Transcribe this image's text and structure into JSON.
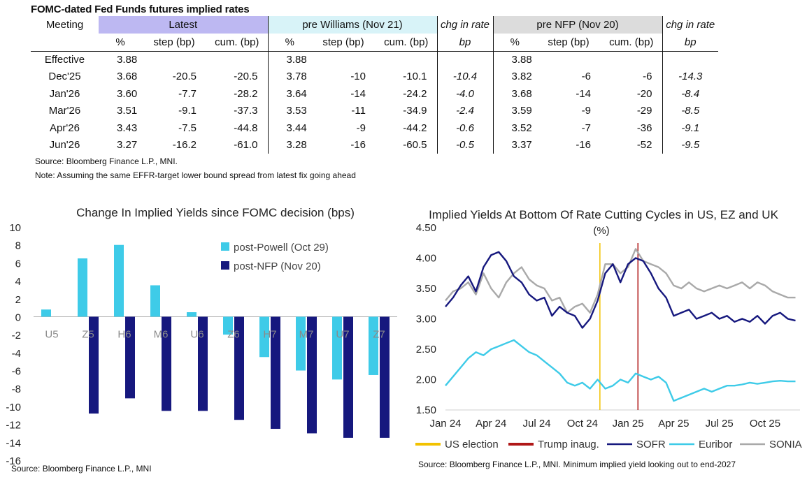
{
  "table": {
    "title": "FOMC-dated Fed Funds futures implied rates",
    "meeting_header": "Meeting",
    "groups": [
      {
        "label": "Latest",
        "color": "#bdb8f2"
      },
      {
        "label": "pre Williams (Nov 21)",
        "color": "#d8f3f8"
      },
      {
        "label": "chg in rate",
        "color": "#ffffff"
      },
      {
        "label": "pre NFP (Nov 20)",
        "color": "#dcdcdc"
      },
      {
        "label": "chg in rate",
        "color": "#ffffff"
      }
    ],
    "subheaders": {
      "pct": "%",
      "step": "step (bp)",
      "cum": "cum. (bp)",
      "chg": "bp"
    },
    "rows": [
      {
        "meeting": "Effective",
        "latest": [
          "3.88",
          "",
          ""
        ],
        "will": [
          "3.88",
          "",
          ""
        ],
        "chg1": "",
        "nfp": [
          "3.88",
          "",
          ""
        ],
        "chg2": ""
      },
      {
        "meeting": "Dec'25",
        "latest": [
          "3.68",
          "-20.5",
          "-20.5"
        ],
        "will": [
          "3.78",
          "-10",
          "-10.1"
        ],
        "chg1": "-10.4",
        "nfp": [
          "3.82",
          "-6",
          "-6"
        ],
        "chg2": "-14.3"
      },
      {
        "meeting": "Jan'26",
        "latest": [
          "3.60",
          "-7.7",
          "-28.2"
        ],
        "will": [
          "3.64",
          "-14",
          "-24.2"
        ],
        "chg1": "-4.0",
        "nfp": [
          "3.68",
          "-14",
          "-20"
        ],
        "chg2": "-8.4"
      },
      {
        "meeting": "Mar'26",
        "latest": [
          "3.51",
          "-9.1",
          "-37.3"
        ],
        "will": [
          "3.53",
          "-11",
          "-34.9"
        ],
        "chg1": "-2.4",
        "nfp": [
          "3.59",
          "-9",
          "-29"
        ],
        "chg2": "-8.5"
      },
      {
        "meeting": "Apr'26",
        "latest": [
          "3.43",
          "-7.5",
          "-44.8"
        ],
        "will": [
          "3.44",
          "-9",
          "-44.2"
        ],
        "chg1": "-0.6",
        "nfp": [
          "3.52",
          "-7",
          "-36"
        ],
        "chg2": "-9.1"
      },
      {
        "meeting": "Jun'26",
        "latest": [
          "3.27",
          "-16.2",
          "-61.0"
        ],
        "will": [
          "3.28",
          "-16",
          "-60.5"
        ],
        "chg1": "-0.5",
        "nfp": [
          "3.37",
          "-16",
          "-52"
        ],
        "chg2": "-9.5"
      }
    ],
    "source": "Source: Bloomberg Finance L.P., MNI.",
    "note": "Note: Assuming the same  EFFR-target lower bound spread from latest fix going ahead"
  },
  "chart_data": [
    {
      "type": "bar",
      "title": "Change In Implied Yields since FOMC decision (bps)",
      "categories": [
        "U5",
        "Z5",
        "H6",
        "M6",
        "U6",
        "Z6",
        "H7",
        "M7",
        "U7",
        "Z7"
      ],
      "series": [
        {
          "name": "post-Powell (Oct 29)",
          "color": "#3ecbe8",
          "values": [
            0.8,
            6.5,
            8.0,
            3.5,
            0.5,
            -2.0,
            -4.5,
            -6.0,
            -7.0,
            -6.5
          ]
        },
        {
          "name": "post-NFP (Nov 20)",
          "color": "#16187e",
          "values": [
            0.0,
            -10.8,
            -9.1,
            -10.5,
            -10.5,
            -11.5,
            -12.5,
            -13.0,
            -13.5,
            -13.5
          ]
        }
      ],
      "ylim": [
        -16,
        10
      ],
      "yticks": [
        10,
        8,
        6,
        4,
        2,
        0,
        -2,
        -4,
        -6,
        -8,
        -10,
        -12,
        -14,
        -16
      ],
      "legend_position": "top-right",
      "source": "Source: Bloomberg Finance L.P., MNI"
    },
    {
      "type": "line",
      "title": "Implied Yields At Bottom Of Rate Cutting Cycles in US, EZ and UK",
      "subtitle": "(%)",
      "x_range": [
        "2024-01",
        "2025-12"
      ],
      "xticks": [
        "Jan 24",
        "Apr 24",
        "Jul 24",
        "Oct 24",
        "Jan 25",
        "Apr 25",
        "Jul 25",
        "Oct 25"
      ],
      "ylim": [
        1.5,
        4.5
      ],
      "yticks": [
        "4.50",
        "4.00",
        "3.50",
        "3.00",
        "2.50",
        "2.00",
        "1.50"
      ],
      "vlines": [
        {
          "name": "US election",
          "date": 10.15,
          "color": "#f2c200"
        },
        {
          "name": "Trump inaug.",
          "date": 12.65,
          "color": "#b01818"
        }
      ],
      "series": [
        {
          "name": "SOFR",
          "color": "#16187e",
          "x": [
            0,
            0.5,
            1,
            1.5,
            2,
            2.5,
            3,
            3.5,
            4,
            4.5,
            5,
            5.5,
            6,
            6.5,
            7,
            7.5,
            8,
            8.5,
            9,
            9.5,
            10,
            10.5,
            11,
            11.5,
            12,
            12.5,
            13,
            13.5,
            14,
            14.5,
            15,
            15.5,
            16,
            16.5,
            17,
            17.5,
            18,
            18.5,
            19,
            19.5,
            20,
            20.5,
            21,
            21.5,
            22,
            22.5,
            23
          ],
          "values": [
            3.2,
            3.35,
            3.55,
            3.7,
            3.45,
            3.85,
            4.05,
            4.1,
            3.95,
            3.7,
            3.6,
            3.4,
            3.3,
            3.35,
            3.05,
            3.2,
            3.1,
            3.05,
            2.85,
            3.0,
            3.3,
            3.75,
            3.9,
            3.6,
            3.9,
            4.0,
            3.95,
            3.75,
            3.5,
            3.35,
            3.05,
            3.1,
            3.15,
            3.0,
            3.05,
            3.1,
            3.0,
            3.05,
            2.95,
            3.0,
            2.95,
            3.05,
            2.92,
            3.05,
            3.1,
            3.0,
            2.97
          ]
        },
        {
          "name": "Euribor",
          "color": "#3ecbe8",
          "x": [
            0,
            0.5,
            1,
            1.5,
            2,
            2.5,
            3,
            3.5,
            4,
            4.5,
            5,
            5.5,
            6,
            6.5,
            7,
            7.5,
            8,
            8.5,
            9,
            9.5,
            10,
            10.5,
            11,
            11.5,
            12,
            12.5,
            13,
            13.5,
            14,
            14.5,
            15,
            15.5,
            16,
            16.5,
            17,
            17.5,
            18,
            18.5,
            19,
            19.5,
            20,
            20.5,
            21,
            21.5,
            22,
            22.5,
            23
          ],
          "values": [
            1.9,
            2.05,
            2.2,
            2.35,
            2.45,
            2.4,
            2.5,
            2.55,
            2.6,
            2.65,
            2.55,
            2.45,
            2.4,
            2.3,
            2.2,
            2.1,
            1.95,
            1.9,
            1.95,
            1.85,
            2.0,
            1.85,
            1.9,
            2.0,
            1.95,
            2.1,
            2.05,
            2.0,
            2.05,
            1.95,
            1.65,
            1.7,
            1.75,
            1.8,
            1.85,
            1.8,
            1.85,
            1.9,
            1.9,
            1.92,
            1.95,
            1.93,
            1.95,
            1.97,
            1.98,
            1.97,
            1.97
          ]
        },
        {
          "name": "SONIA",
          "color": "#a9a9a9",
          "x": [
            0,
            0.5,
            1,
            1.5,
            2,
            2.5,
            3,
            3.5,
            4,
            4.5,
            5,
            5.5,
            6,
            6.5,
            7,
            7.5,
            8,
            8.5,
            9,
            9.5,
            10,
            10.5,
            11,
            11.5,
            12,
            12.5,
            13,
            13.5,
            14,
            14.5,
            15,
            15.5,
            16,
            16.5,
            17,
            17.5,
            18,
            18.5,
            19,
            19.5,
            20,
            20.5,
            21,
            21.5,
            22,
            22.5,
            23
          ],
          "values": [
            3.3,
            3.45,
            3.5,
            3.6,
            3.4,
            3.75,
            3.5,
            3.35,
            3.6,
            3.75,
            3.85,
            3.65,
            3.55,
            3.5,
            3.3,
            3.35,
            3.1,
            3.2,
            3.25,
            3.1,
            3.4,
            3.9,
            3.9,
            3.75,
            3.85,
            4.15,
            3.95,
            3.9,
            3.85,
            3.75,
            3.55,
            3.5,
            3.6,
            3.5,
            3.45,
            3.5,
            3.55,
            3.5,
            3.55,
            3.6,
            3.5,
            3.6,
            3.55,
            3.45,
            3.4,
            3.35,
            3.35
          ]
        }
      ],
      "legend": [
        "US election",
        "Trump inaug.",
        "SOFR",
        "Euribor",
        "SONIA"
      ],
      "legend_position": "bottom",
      "source": "Source: Bloomberg Finance L.P., MNI. Minimum implied yield looking out to end-2027"
    }
  ]
}
